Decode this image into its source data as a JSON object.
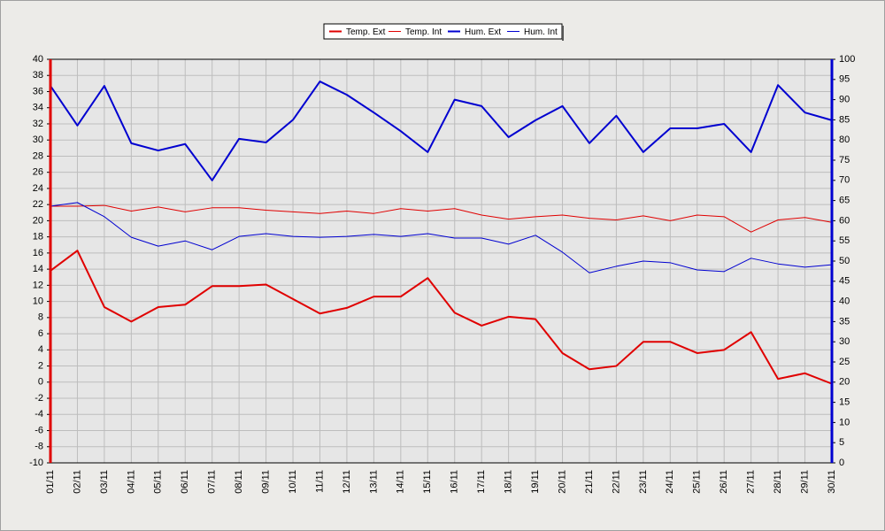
{
  "chart_data": {
    "type": "line",
    "categories": [
      "01/11",
      "02/11",
      "03/11",
      "04/11",
      "05/11",
      "06/11",
      "07/11",
      "08/11",
      "09/11",
      "10/11",
      "11/11",
      "12/11",
      "13/11",
      "14/11",
      "15/11",
      "16/11",
      "17/11",
      "18/11",
      "19/11",
      "20/11",
      "21/11",
      "22/11",
      "23/11",
      "24/11",
      "25/11",
      "26/11",
      "27/11",
      "28/11",
      "29/11",
      "30/11"
    ],
    "series": [
      {
        "name": "Temp. Ext",
        "color": "#e00000",
        "width": 2,
        "values": [
          13.8,
          16.3,
          9.3,
          7.5,
          9.3,
          9.6,
          11.9,
          11.9,
          12.1,
          10.3,
          8.5,
          9.2,
          10.6,
          10.6,
          12.9,
          8.6,
          7.0,
          8.1,
          7.8,
          3.6,
          1.6,
          2.0,
          5.0,
          5.0,
          3.6,
          4.0,
          6.2,
          0.4,
          1.1,
          -0.2
        ]
      },
      {
        "name": "Temp. Int",
        "color": "#e00000",
        "width": 1,
        "values": [
          21.8,
          21.8,
          21.9,
          21.2,
          21.7,
          21.1,
          21.6,
          21.6,
          21.3,
          21.1,
          20.9,
          21.2,
          20.9,
          21.5,
          21.2,
          21.5,
          20.7,
          20.2,
          20.5,
          20.7,
          20.3,
          20.1,
          20.6,
          20.0,
          20.7,
          20.5,
          18.6,
          20.1,
          20.4,
          19.8
        ]
      },
      {
        "name": "Hum. Ext",
        "color": "#0000d0",
        "width": 2,
        "axis": "y2",
        "values": [
          93.4,
          83.6,
          93.4,
          79.2,
          77.4,
          79.0,
          70.0,
          80.3,
          79.4,
          85.0,
          94.5,
          91.2,
          86.8,
          82.2,
          77.0,
          90.0,
          88.4,
          80.7,
          84.9,
          88.4,
          79.2,
          86.0,
          77.0,
          82.9,
          82.9,
          84.0,
          77.0,
          93.6,
          86.8,
          84.9
        ]
      },
      {
        "name": "Hum. Int",
        "color": "#0000d0",
        "width": 1,
        "axis": "y2",
        "values": [
          63.6,
          64.5,
          61.0,
          55.9,
          53.7,
          55.0,
          52.8,
          56.1,
          56.8,
          56.1,
          55.9,
          56.1,
          56.6,
          56.1,
          56.8,
          55.7,
          55.7,
          54.2,
          56.4,
          52.2,
          47.1,
          48.7,
          50.0,
          49.6,
          47.8,
          47.4,
          50.7,
          49.3,
          48.5,
          49.1
        ]
      }
    ],
    "ylim": [
      -10,
      40
    ],
    "yticks": [
      -10,
      -8,
      -6,
      -4,
      -2,
      0,
      2,
      4,
      6,
      8,
      10,
      12,
      14,
      16,
      18,
      20,
      22,
      24,
      26,
      28,
      30,
      32,
      34,
      36,
      38,
      40
    ],
    "y2lim": [
      0,
      100
    ],
    "y2ticks": [
      0,
      5,
      10,
      15,
      20,
      25,
      30,
      35,
      40,
      45,
      50,
      55,
      60,
      65,
      70,
      75,
      80,
      85,
      90,
      95,
      100
    ],
    "grid": true,
    "legend": "top"
  }
}
